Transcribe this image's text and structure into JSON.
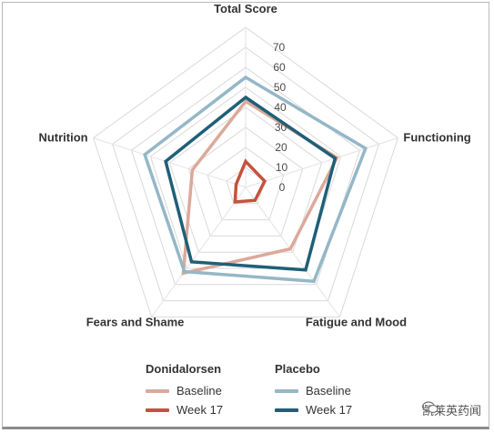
{
  "chart_data": {
    "type": "radar",
    "axes": [
      "Total Score",
      "Functioning",
      "Fatigue and Mood",
      "Fears and Shame",
      "Nutrition"
    ],
    "rlim": [
      0,
      70
    ],
    "ticks": [
      0,
      10,
      20,
      30,
      40,
      50,
      60,
      70
    ],
    "tick_labels": [
      "0",
      "10",
      "20",
      "30",
      "40",
      "50",
      "60",
      "70"
    ],
    "series": [
      {
        "group": "Donidalorsen",
        "name": "Baseline",
        "color": "#dba99a",
        "values": [
          43,
          48,
          38,
          53,
          28
        ]
      },
      {
        "group": "Donidalorsen",
        "name": "Week 17",
        "color": "#c5523d",
        "values": [
          13,
          10,
          8,
          9,
          5
        ]
      },
      {
        "group": "Placebo",
        "name": "Baseline",
        "color": "#95b7c7",
        "values": [
          55,
          63,
          58,
          52,
          53
        ]
      },
      {
        "group": "Placebo",
        "name": "Week 17",
        "color": "#1f5f78",
        "values": [
          45,
          47,
          51,
          46,
          42
        ]
      }
    ],
    "legend": {
      "groups": [
        {
          "title": "Donidalorsen",
          "items": [
            "Baseline",
            "Week 17"
          ]
        },
        {
          "title": "Placebo",
          "items": [
            "Baseline",
            "Week 17"
          ]
        }
      ],
      "placement": "bottom"
    },
    "grid": true
  },
  "watermark": {
    "text": "凯莱英药闻"
  }
}
